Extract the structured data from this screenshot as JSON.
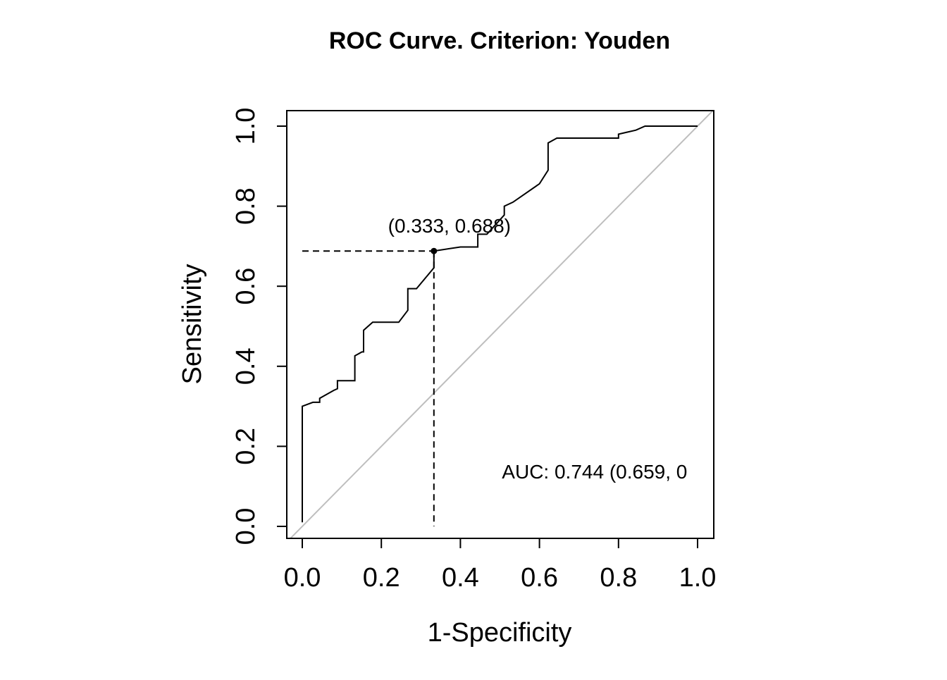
{
  "chart_data": {
    "type": "line",
    "title": "ROC Curve. Criterion: Youden",
    "xlabel": "1-Specificity",
    "ylabel": "Sensitivity",
    "xlim": [
      0.0,
      1.0
    ],
    "ylim": [
      0.0,
      1.0
    ],
    "xticks": [
      "0.0",
      "0.2",
      "0.4",
      "0.6",
      "0.8",
      "1.0"
    ],
    "yticks": [
      "0.0",
      "0.2",
      "0.4",
      "0.6",
      "0.8",
      "1.0"
    ],
    "grid": false,
    "legend": "none",
    "series": [
      {
        "x": [
          0.0,
          0.0,
          0.027,
          0.044,
          0.044,
          0.08,
          0.089,
          0.089,
          0.133,
          0.133,
          0.151,
          0.155,
          0.155,
          0.178,
          0.244,
          0.267,
          0.267,
          0.289,
          0.333,
          0.333,
          0.4,
          0.444,
          0.444,
          0.467,
          0.511,
          0.511,
          0.533,
          0.6,
          0.622,
          0.622,
          0.644,
          0.8,
          0.8,
          0.844,
          0.867,
          1.0
        ],
        "y": [
          0.01,
          0.3,
          0.31,
          0.31,
          0.32,
          0.34,
          0.344,
          0.364,
          0.364,
          0.426,
          0.436,
          0.436,
          0.49,
          0.51,
          0.51,
          0.54,
          0.594,
          0.594,
          0.646,
          0.688,
          0.698,
          0.698,
          0.73,
          0.73,
          0.778,
          0.8,
          0.81,
          0.856,
          0.89,
          0.958,
          0.97,
          0.97,
          0.98,
          0.99,
          1.0,
          1.0
        ]
      }
    ],
    "reference_line": {
      "x": [
        0.0,
        1.0
      ],
      "y": [
        0.0,
        1.0
      ],
      "color": "#bebebe"
    },
    "optimal_point": {
      "x": 0.333,
      "y": 0.688,
      "label": "(0.333, 0.688)"
    },
    "auc_label": "AUC: 0.744 (0.659, 0"
  }
}
